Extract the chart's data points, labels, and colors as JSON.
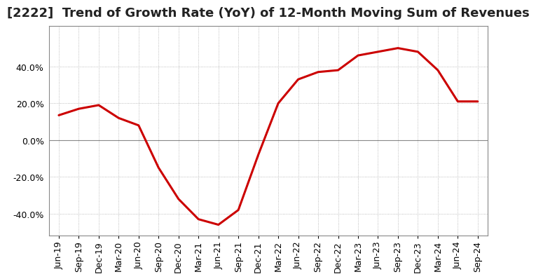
{
  "title": "[2222]  Trend of Growth Rate (YoY) of 12-Month Moving Sum of Revenues",
  "line_color": "#cc0000",
  "background_color": "#ffffff",
  "plot_background": "#ffffff",
  "grid_color": "#aaaaaa",
  "zero_line_color": "#888888",
  "ylim": [
    -52,
    62
  ],
  "yticks": [
    -40.0,
    -20.0,
    0.0,
    20.0,
    40.0
  ],
  "values": [
    13.5,
    17.0,
    19.0,
    12.0,
    8.0,
    -15.0,
    -32.0,
    -43.0,
    -46.0,
    -38.0,
    -8.0,
    20.0,
    33.0,
    37.0,
    38.0,
    46.0,
    48.0,
    50.0,
    48.0,
    38.0,
    21.0,
    21.0
  ],
  "xtick_labels": [
    "Jun-19",
    "Sep-19",
    "Dec-19",
    "Mar-20",
    "Jun-20",
    "Sep-20",
    "Dec-20",
    "Mar-21",
    "Jun-21",
    "Sep-21",
    "Dec-21",
    "Mar-22",
    "Jun-22",
    "Sep-22",
    "Dec-22",
    "Mar-23",
    "Jun-23",
    "Sep-23",
    "Dec-23",
    "Mar-24",
    "Jun-24",
    "Sep-24"
  ],
  "title_fontsize": 13,
  "tick_fontsize": 9,
  "line_width": 2.2
}
